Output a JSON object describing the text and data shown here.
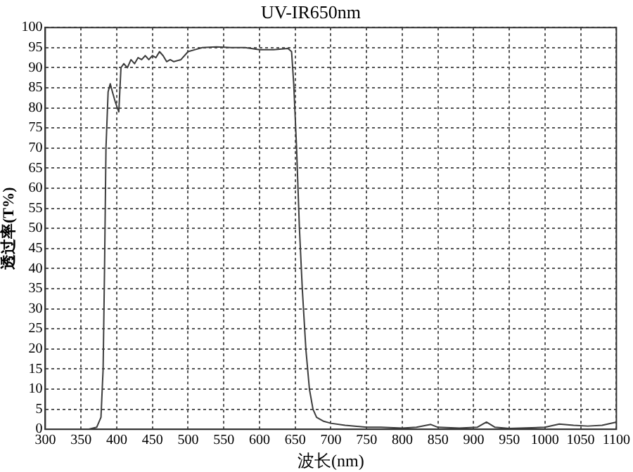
{
  "chart_data": {
    "type": "line",
    "title": "UV-IR650nm",
    "xlabel": "波长(nm)",
    "ylabel": "透过率(T%)",
    "xlim": [
      300,
      1100
    ],
    "xticks": [
      300,
      350,
      400,
      450,
      500,
      550,
      600,
      650,
      700,
      750,
      800,
      850,
      900,
      950,
      1000,
      1050,
      1100
    ],
    "ylim": [
      0,
      100
    ],
    "yticks": [
      0,
      5,
      10,
      15,
      20,
      25,
      30,
      35,
      40,
      45,
      50,
      55,
      60,
      65,
      70,
      75,
      80,
      85,
      90,
      95,
      100
    ],
    "grid": true,
    "legend": false,
    "marker": "none",
    "line_style": "solid",
    "series": [
      {
        "color": "#3c3c3c",
        "x": [
          300,
          360,
          372,
          378,
          381,
          383,
          385,
          388,
          391,
          394,
          398,
          403,
          406,
          408,
          410,
          415,
          420,
          425,
          430,
          435,
          440,
          445,
          450,
          455,
          460,
          465,
          470,
          475,
          480,
          490,
          500,
          510,
          520,
          540,
          560,
          580,
          600,
          620,
          640,
          645,
          648,
          652,
          656,
          660,
          665,
          670,
          675,
          680,
          690,
          700,
          720,
          750,
          770,
          800,
          820,
          840,
          850,
          880,
          905,
          918,
          930,
          950,
          1000,
          1020,
          1040,
          1060,
          1080,
          1100
        ],
        "values": [
          0,
          0,
          0.5,
          3,
          15,
          40,
          70,
          84,
          86,
          84,
          81.5,
          79,
          90,
          90.5,
          91,
          90,
          92,
          91,
          92.5,
          92,
          93,
          92,
          93,
          92.5,
          94,
          93,
          91.5,
          92,
          91.5,
          92,
          94,
          94.5,
          95,
          95.2,
          95,
          95,
          94.5,
          94.5,
          94.8,
          94,
          86,
          70,
          50,
          35,
          20,
          10,
          5,
          3,
          2,
          1.5,
          1,
          0.5,
          0.5,
          0.3,
          0.5,
          1.2,
          0.5,
          0.3,
          0.5,
          1.8,
          0.5,
          0.2,
          0.5,
          1.3,
          1,
          0.8,
          1,
          1.8
        ]
      }
    ]
  }
}
